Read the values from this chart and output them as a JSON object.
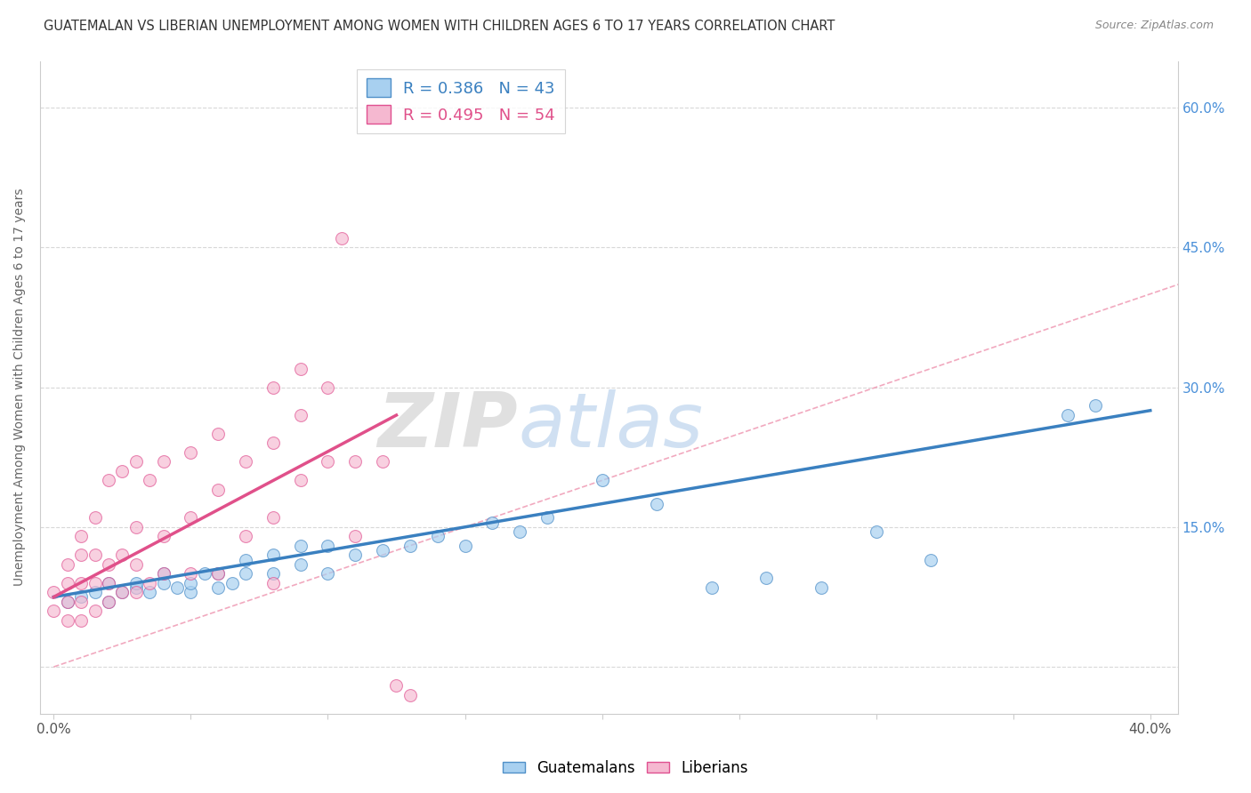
{
  "title": "GUATEMALAN VS LIBERIAN UNEMPLOYMENT AMONG WOMEN WITH CHILDREN AGES 6 TO 17 YEARS CORRELATION CHART",
  "source": "Source: ZipAtlas.com",
  "xlabel": "",
  "ylabel": "Unemployment Among Women with Children Ages 6 to 17 years",
  "xlim": [
    -0.005,
    0.41
  ],
  "ylim": [
    -0.05,
    0.65
  ],
  "xticks": [
    0.0,
    0.05,
    0.1,
    0.15,
    0.2,
    0.25,
    0.3,
    0.35,
    0.4
  ],
  "yticks": [
    0.0,
    0.15,
    0.3,
    0.45,
    0.6
  ],
  "xticklabels": [
    "0.0%",
    "",
    "",
    "",
    "",
    "",
    "",
    "",
    "40.0%"
  ],
  "yticklabels_left": [
    "",
    "",
    "",
    "",
    ""
  ],
  "yticklabels_right": [
    "",
    "15.0%",
    "30.0%",
    "45.0%",
    "60.0%"
  ],
  "legend_entries": [
    {
      "label": "R = 0.386   N = 43",
      "color": "#a8d0f0"
    },
    {
      "label": "R = 0.495   N = 54",
      "color": "#f5b8d0"
    }
  ],
  "scatter_guatemalan": {
    "color": "#a8d0f0",
    "edge_color": "#5090c8",
    "alpha": 0.7,
    "size": 100,
    "x": [
      0.005,
      0.01,
      0.015,
      0.02,
      0.02,
      0.025,
      0.03,
      0.03,
      0.035,
      0.04,
      0.04,
      0.045,
      0.05,
      0.05,
      0.055,
      0.06,
      0.06,
      0.065,
      0.07,
      0.07,
      0.08,
      0.08,
      0.09,
      0.09,
      0.1,
      0.1,
      0.11,
      0.12,
      0.13,
      0.14,
      0.15,
      0.16,
      0.17,
      0.18,
      0.2,
      0.22,
      0.24,
      0.26,
      0.28,
      0.3,
      0.32,
      0.37,
      0.38
    ],
    "y": [
      0.07,
      0.075,
      0.08,
      0.07,
      0.09,
      0.08,
      0.085,
      0.09,
      0.08,
      0.09,
      0.1,
      0.085,
      0.08,
      0.09,
      0.1,
      0.085,
      0.1,
      0.09,
      0.1,
      0.115,
      0.1,
      0.12,
      0.11,
      0.13,
      0.1,
      0.13,
      0.12,
      0.125,
      0.13,
      0.14,
      0.13,
      0.155,
      0.145,
      0.16,
      0.2,
      0.175,
      0.085,
      0.095,
      0.085,
      0.145,
      0.115,
      0.27,
      0.28
    ]
  },
  "scatter_liberian": {
    "color": "#f5b8d0",
    "edge_color": "#e05090",
    "alpha": 0.65,
    "size": 100,
    "x": [
      0.0,
      0.0,
      0.005,
      0.005,
      0.005,
      0.005,
      0.01,
      0.01,
      0.01,
      0.01,
      0.01,
      0.015,
      0.015,
      0.015,
      0.015,
      0.02,
      0.02,
      0.02,
      0.02,
      0.025,
      0.025,
      0.025,
      0.03,
      0.03,
      0.03,
      0.03,
      0.035,
      0.035,
      0.04,
      0.04,
      0.04,
      0.05,
      0.05,
      0.05,
      0.06,
      0.06,
      0.06,
      0.07,
      0.07,
      0.08,
      0.08,
      0.08,
      0.08,
      0.09,
      0.09,
      0.09,
      0.1,
      0.1,
      0.105,
      0.11,
      0.11,
      0.12,
      0.125,
      0.13
    ],
    "y": [
      0.06,
      0.08,
      0.05,
      0.07,
      0.09,
      0.11,
      0.05,
      0.07,
      0.09,
      0.12,
      0.14,
      0.06,
      0.09,
      0.12,
      0.16,
      0.07,
      0.09,
      0.11,
      0.2,
      0.08,
      0.12,
      0.21,
      0.08,
      0.11,
      0.15,
      0.22,
      0.09,
      0.2,
      0.1,
      0.14,
      0.22,
      0.1,
      0.16,
      0.23,
      0.1,
      0.19,
      0.25,
      0.14,
      0.22,
      0.09,
      0.16,
      0.24,
      0.3,
      0.2,
      0.27,
      0.32,
      0.22,
      0.3,
      0.46,
      0.14,
      0.22,
      0.22,
      -0.02,
      -0.03
    ]
  },
  "regression_guatemalan": {
    "color": "#3a80c0",
    "linewidth": 2.5,
    "x_start": 0.0,
    "x_end": 0.4,
    "y_start": 0.075,
    "y_end": 0.275
  },
  "regression_liberian": {
    "color": "#e0508a",
    "linewidth": 2.5,
    "x_start": 0.0,
    "x_end": 0.125,
    "y_start": 0.075,
    "y_end": 0.27
  },
  "diagonal_color": "#f0a0b8",
  "diagonal_linestyle": "--",
  "watermark_zip": "ZIP",
  "watermark_atlas": "atlas",
  "background_color": "#ffffff",
  "grid_color": "#d8d8d8",
  "title_fontsize": 10.5,
  "axis_label_fontsize": 10,
  "tick_fontsize": 11
}
